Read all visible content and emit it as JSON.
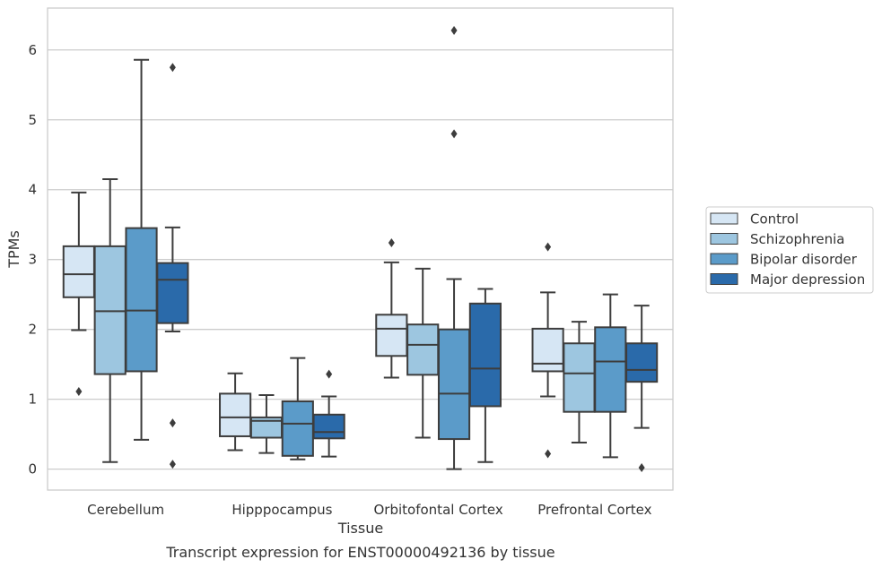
{
  "caption": "Transcript expression for ENST00000492136 by tissue",
  "chart_data": {
    "type": "boxplot",
    "xlabel": "Tissue",
    "ylabel": "TPMs",
    "ylim": [
      -0.3,
      6.6
    ],
    "yticks": [
      0,
      1,
      2,
      3,
      4,
      5,
      6
    ],
    "grid": "horizontal",
    "legend_position": "right",
    "categories": [
      "Cerebellum",
      "Hipppocampus",
      "Orbitofontal Cortex",
      "Prefrontal Cortex"
    ],
    "series": [
      {
        "name": "Control",
        "color": "#d6e6f4",
        "boxes": [
          {
            "whislo": 1.99,
            "q1": 2.46,
            "med": 2.79,
            "q3": 3.19,
            "whishi": 3.96,
            "fliers": [
              1.11
            ]
          },
          {
            "whislo": 0.27,
            "q1": 0.47,
            "med": 0.74,
            "q3": 1.08,
            "whishi": 1.37,
            "fliers": []
          },
          {
            "whislo": 1.31,
            "q1": 1.62,
            "med": 2.01,
            "q3": 2.21,
            "whishi": 2.96,
            "fliers": [
              3.24
            ]
          },
          {
            "whislo": 1.04,
            "q1": 1.4,
            "med": 1.51,
            "q3": 2.01,
            "whishi": 2.53,
            "fliers": [
              0.22,
              3.18
            ]
          }
        ]
      },
      {
        "name": "Schizophrenia",
        "color": "#9dc6e0",
        "boxes": [
          {
            "whislo": 0.1,
            "q1": 1.36,
            "med": 2.26,
            "q3": 3.19,
            "whishi": 4.15,
            "fliers": []
          },
          {
            "whislo": 0.23,
            "q1": 0.45,
            "med": 0.69,
            "q3": 0.74,
            "whishi": 1.06,
            "fliers": []
          },
          {
            "whislo": 0.45,
            "q1": 1.35,
            "med": 1.78,
            "q3": 2.07,
            "whishi": 2.87,
            "fliers": []
          },
          {
            "whislo": 0.38,
            "q1": 0.82,
            "med": 1.37,
            "q3": 1.8,
            "whishi": 2.11,
            "fliers": []
          }
        ]
      },
      {
        "name": "Bipolar disorder",
        "color": "#5b9bc9",
        "boxes": [
          {
            "whislo": 0.42,
            "q1": 1.4,
            "med": 2.27,
            "q3": 3.45,
            "whishi": 5.86,
            "fliers": []
          },
          {
            "whislo": 0.14,
            "q1": 0.19,
            "med": 0.65,
            "q3": 0.97,
            "whishi": 1.59,
            "fliers": []
          },
          {
            "whislo": 0.0,
            "q1": 0.43,
            "med": 1.08,
            "q3": 2.0,
            "whishi": 2.72,
            "fliers": [
              4.8,
              6.28
            ]
          },
          {
            "whislo": 0.17,
            "q1": 0.82,
            "med": 1.54,
            "q3": 2.03,
            "whishi": 2.5,
            "fliers": []
          }
        ]
      },
      {
        "name": "Major depression",
        "color": "#2a6aaa",
        "boxes": [
          {
            "whislo": 1.97,
            "q1": 2.09,
            "med": 2.71,
            "q3": 2.95,
            "whishi": 3.46,
            "fliers": [
              0.07,
              0.66,
              5.75
            ]
          },
          {
            "whislo": 0.18,
            "q1": 0.44,
            "med": 0.53,
            "q3": 0.78,
            "whishi": 1.04,
            "fliers": [
              1.36
            ]
          },
          {
            "whislo": 0.1,
            "q1": 0.9,
            "med": 1.44,
            "q3": 2.37,
            "whishi": 2.58,
            "fliers": []
          },
          {
            "whislo": 0.59,
            "q1": 1.25,
            "med": 1.42,
            "q3": 1.8,
            "whishi": 2.34,
            "fliers": [
              0.02
            ]
          }
        ]
      }
    ]
  }
}
